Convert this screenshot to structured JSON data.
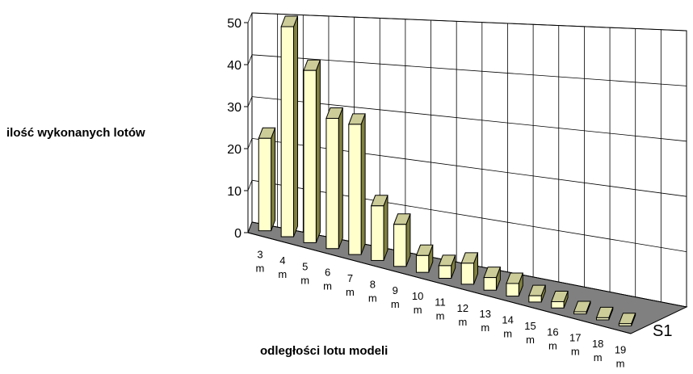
{
  "chart_data": {
    "type": "bar",
    "view": "3d-perspective",
    "title": "",
    "ylabel": "ilość wykonanych lotów",
    "xlabel": "odległości lotu modeli",
    "series_axis_label": "S1",
    "categories": [
      [
        "3",
        "m"
      ],
      [
        "4",
        "m"
      ],
      [
        "5",
        "m"
      ],
      [
        "6",
        "m"
      ],
      [
        "7",
        "m"
      ],
      [
        "8",
        "m"
      ],
      [
        "9",
        "m"
      ],
      [
        "10",
        "m"
      ],
      [
        "11",
        "m"
      ],
      [
        "12",
        "m"
      ],
      [
        "13",
        "m"
      ],
      [
        "14",
        "m"
      ],
      [
        "15",
        "m"
      ],
      [
        "16",
        "m"
      ],
      [
        "17",
        "m"
      ],
      [
        "18",
        "m"
      ],
      [
        "19",
        "m"
      ]
    ],
    "series": [
      {
        "values": [
          22,
          50,
          41,
          31,
          31,
          13,
          10,
          4,
          3,
          5,
          3,
          3,
          1.5,
          1.5,
          0.5,
          0.5,
          0.5
        ]
      }
    ],
    "ylim": [
      0,
      50
    ],
    "yticks": [
      "0",
      "10",
      "20",
      "30",
      "40",
      "50"
    ],
    "grid": true,
    "bar_color": "#FFFFCC"
  }
}
